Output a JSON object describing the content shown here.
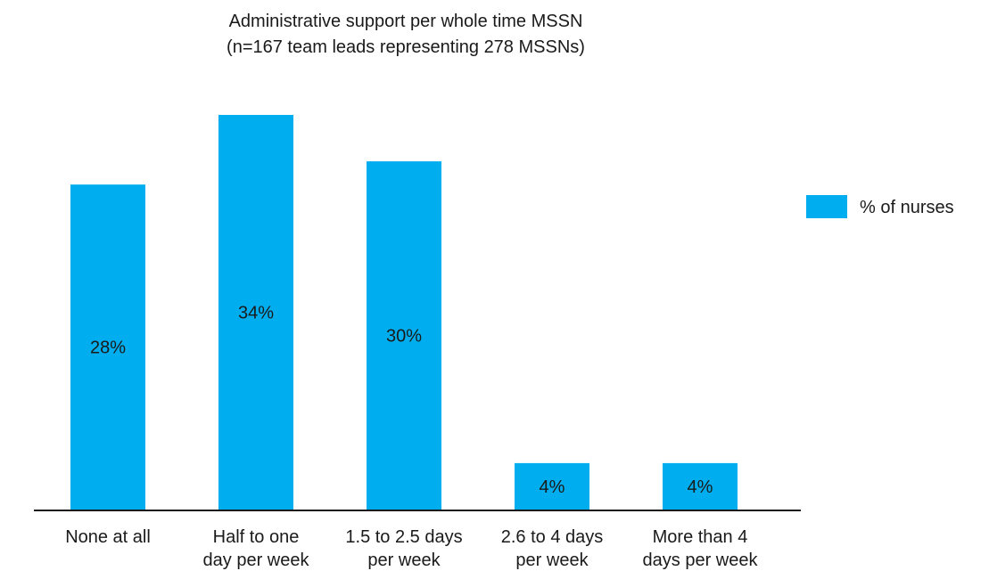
{
  "chart_data": {
    "type": "bar",
    "title": "Administrative support per whole time MSSN",
    "subtitle": "(n=167 team leads representing 278 MSSNs)",
    "categories": [
      [
        "None at all"
      ],
      [
        "Half to one",
        "day per week"
      ],
      [
        "1.5 to 2.5 days",
        "per week"
      ],
      [
        "2.6 to 4 days",
        "per week"
      ],
      [
        "More than 4",
        "days per week"
      ]
    ],
    "series": [
      {
        "name": "% of nurses",
        "color": "#00aeef",
        "values": [
          28,
          34,
          30,
          4,
          4
        ],
        "labels": [
          "28%",
          "34%",
          "30%",
          "4%",
          "4%"
        ]
      }
    ],
    "ylim": [
      0,
      34
    ],
    "grid": false,
    "legend_position": "right"
  }
}
